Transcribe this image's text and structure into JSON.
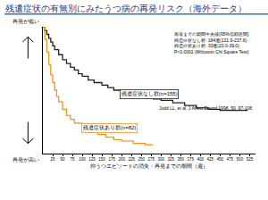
{
  "chart_data": {
    "type": "line",
    "title": "残遺症状の有無別にみたうつ病の再発リスク（海外データ）",
    "xlabel": "抑うつエピソードの消失・再発までの期間（週）",
    "y_high_label": "再発が低い",
    "y_low_label": "再発が高い",
    "stats_box": [
      "再発までの期間中央値(95%信頼区間)",
      "残遺症状なし群: 184週(131.9-237.6)",
      "残遺症状あり群: 33週(23.0-39.0)",
      "P<0.0001 (Wilcoxon Chi Square Test)"
    ],
    "source": "Judd LL, et al. J Affect Disord.1998, 50, 97-108.",
    "line_style": "step",
    "tick_labels": "x",
    "xlim": [
      0,
      540
    ],
    "ylim": [
      0,
      1
    ],
    "xticks": [
      25,
      50,
      75,
      100,
      125,
      150,
      175,
      200,
      225,
      250,
      275,
      300,
      325,
      350,
      375,
      400,
      425,
      450,
      475,
      500,
      525
    ],
    "yticks": [],
    "series": [
      {
        "name": "残遺症状なし群(n=155)",
        "color": "#222222",
        "x": [
          0,
          5,
          10,
          15,
          20,
          25,
          30,
          40,
          50,
          60,
          70,
          80,
          90,
          100,
          115,
          130,
          150,
          165,
          180,
          200,
          220,
          240,
          260,
          280,
          300,
          330,
          360,
          390,
          420,
          450,
          480,
          520
        ],
        "values": [
          1,
          0.97,
          0.94,
          0.91,
          0.88,
          0.85,
          0.82,
          0.78,
          0.74,
          0.71,
          0.68,
          0.66,
          0.63,
          0.61,
          0.58,
          0.56,
          0.54,
          0.52,
          0.5,
          0.48,
          0.46,
          0.45,
          0.44,
          0.43,
          0.42,
          0.4,
          0.38,
          0.36,
          0.35,
          0.34,
          0.34,
          0.34
        ]
      },
      {
        "name": "残遺症状あり群(n=82)",
        "color": "#f7941d",
        "x": [
          0,
          5,
          10,
          15,
          20,
          25,
          30,
          35,
          40,
          50,
          60,
          70,
          80,
          100,
          120,
          140,
          160,
          180,
          200,
          230,
          260,
          280
        ],
        "values": [
          1,
          0.9,
          0.8,
          0.7,
          0.62,
          0.56,
          0.5,
          0.45,
          0.41,
          0.35,
          0.3,
          0.27,
          0.24,
          0.2,
          0.17,
          0.15,
          0.13,
          0.11,
          0.1,
          0.08,
          0.07,
          0.07
        ]
      }
    ]
  }
}
